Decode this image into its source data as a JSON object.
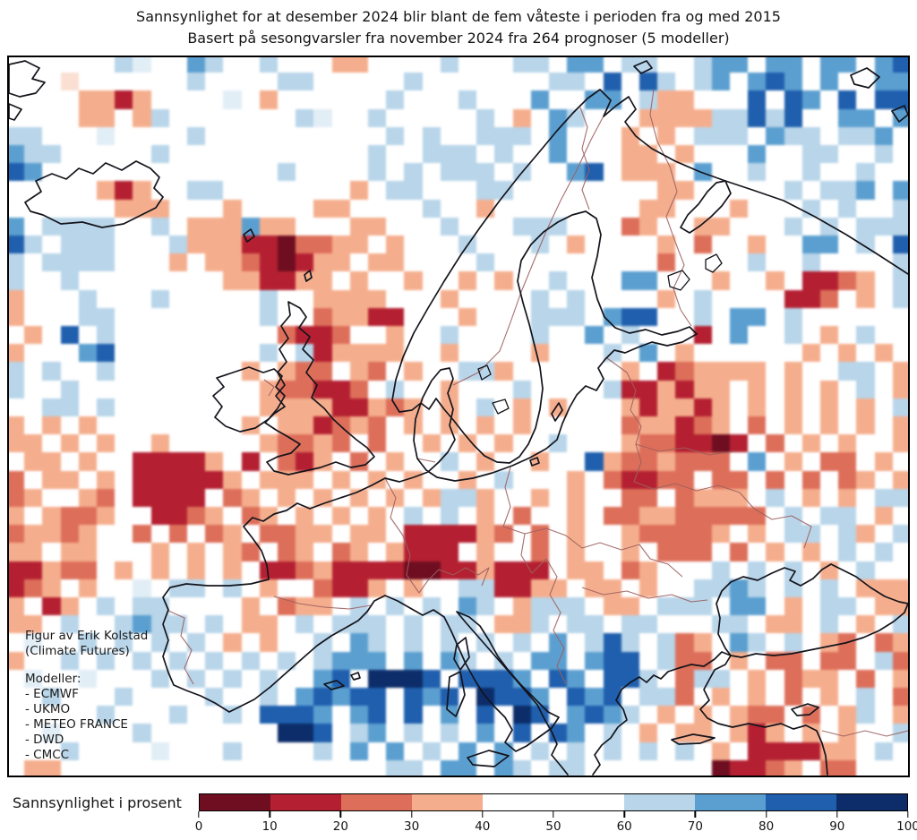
{
  "title": {
    "line1": "Sannsynlighet for at desember 2024 blir blant de fem våteste i perioden fra og med 2015",
    "line2": "Basert på sesongvarsler fra november 2024 fra 264 prognoser (5 modeller)"
  },
  "annotation": {
    "credit_line1": "Figur av Erik Kolstad",
    "credit_line2": "(Climate Futures)",
    "models_label": "Modeller:",
    "models": [
      "- ECMWF",
      "- UKMO",
      "- METEO FRANCE",
      "- DWD",
      "- CMCC"
    ]
  },
  "colorbar": {
    "label": "Sannsynlighet i prosent",
    "ticks": [
      "0",
      "10",
      "20",
      "30",
      "40",
      "50",
      "60",
      "70",
      "80",
      "90",
      "100"
    ],
    "segment_colors": [
      "#6f0d21",
      "#b42031",
      "#dd6f5a",
      "#f5ae8d",
      "#ffffff",
      "#ffffff",
      "#b8d5e9",
      "#5b9fd0",
      "#1f5fad",
      "#0c2d69"
    ]
  },
  "chart_data": {
    "type": "heatmap",
    "title": "Sannsynlighet for at desember 2024 blir blant de fem våteste i perioden fra og med 2015",
    "subtitle": "Basert på sesongvarsler fra november 2024 fra 264 prognoser (5 modeller)",
    "region": "Europe / North Atlantic",
    "units": "percent probability",
    "colorbar_range": [
      0,
      100
    ],
    "colorbar_tick_step": 10,
    "legend_position": "bottom",
    "grid_cols": 50,
    "grid_rows": 40,
    "bins": {
      "0": "0-10%",
      "1": "10-20%",
      "2": "20-30%",
      "3": "30-40%",
      "p": "~40-50% (faint pink)",
      ".": "40-60% (white)",
      "b": "~50-60% (faint blue)",
      "6": "60-70%",
      "7": "70-80%",
      "8": "80-90%",
      "9": "90-100%"
    },
    "palette": {
      "0": "#6f0d21",
      "1": "#b42031",
      "2": "#dd6f5a",
      "3": "#f5ae8d",
      "p": "#fadfd2",
      ".": "#ffffff",
      "b": "#e2eef6",
      "6": "#b8d5e9",
      "7": "#5b9fd0",
      "8": "#1f5fad",
      "9": "#0c2d69"
    },
    "rows": [
      "......6b..76..6...33....6...66.77.66..677.77.77.78",
      "...p......6....66.....6.......66.8.86.67.787.7..77",
      "....3313....b.3......6...6...7..77.633...8.87.8.88",
      "....33.36.......6b..6.....6.3.76...333366868..77.7",
      "66...b....6..........6.6..666.7...3.3.666.766.667",
      "766.....6...........6..666.6..7...33.3...7..66..6.",
      "87.............6....6.6.666.6..78.333.7..6..6..6",
      ".....313..66.......3.66...66........33.....6.667.78",
      "......333...3....33....6..3........33...3...6.6..66",
      "7.6666..6.333733...33...6...666...23..33...6.6.666",
      "86.666...63331102233.3...6...6.3....3.2..3..77.6.8",
      "6.6666...3.33210133.33....6.........2....6..6....6",
      "6..6........331133.3..3..3.3..6...77...3..3.1123.6",
      "3...6...6.....6..3333...3....6.6....3.6....112.3.6",
      "3...66........6..23311...3...666.788..6.77.6......",
      ".3.8.6.........2112..3..6....6..7.6...1.7..6.3.6",
      "3...78........6.613333..3....3...6.7.3......3.3.3.",
      "6.6..6.......3.322.32.3..663......3.123333.3..66.3",
      "6..6..........322112.6..3...6....6113133.3.3.3.6.3",
      "..66.6........3333113"
    ],
    "rows_note": "placeholder replaced at runtime; full grid in rows_full",
    "rows_full": [
      "......6b..76..6...33....6...66.77.66..677.77.77.78",
      "...p......6....66.....6.......66.8.86.67.787.7..77",
      "....3313....b.3......6...6...7..77.633...8.87.8.88",
      "....33.36.......6b..6.....6.3.76...333366868..77.7",
      "66...b....6..........6.6..666.7...3.3.666.766.667",
      "766.....6...........6..666.6..7...33.3...7..66..6.",
      "87.............6....6.6.666.6..78.333.7..6..6..6",
      ".....313..66.......3.66...66........33.....6.667.78",
      "......333...3....33....6..3........33...3...6.6..66",
      "7.6666..6.333733...33...6...666...23..33...6.6.666",
      "86.666...63331102233.3...6...6.3....3.2..3..77.6.8",
      "6.6666...3.33210133.33....6.........2....6..6....6",
      "6..6........331133.3..3..3.3..6...77...3..3.1123.6",
      "3...6...6.....6..3333...3....6.6....3.6....112.3.6",
      "3...66........6..23311...3...666.788..6.77.6......",
      ".3.8.6.........2112..3..6....6..7.6...1.7..6.3.6",
      "3...78........6.613333..3....3...6.7.3......3.3.3.",
      "6.6..6.......3.322.32.3..663......3.123333.3..66.3",
      "6..6..........322112.6..3...6....6113133.3.3.3.6.3",
      "..66.6........333311323.3.6.3.3...313313.3.3.3.3.6.",
      "3.3.3........3.331232.3.3.3.3.....233123.2.3.3.3.3",
      "33.3.3..3.....32232.2..3.3.3..6...3221101.2.3.3..3",
      ".33.3..11113.1.213.2.3..6.3..3..83223222.7.3.22.3.",
      "2.33.3.111113.333.3.3.3..3.6...3.21122.22.2.2.23.3",
      "23..32.1111.23.3.3.3.3.3663..3.3..22.2333.6.3.3.66",
      "3.3223..1123.23.3.3.3.6.6.3.2..3.223322222.6.66.3.",
      "23323..2.2.23.2233.33.111132.2.3..322223.3.66.63.6",
      "33.33...3.3.32.23.23.3111.3..2.3..3.222.2.3.3.6.6.",
      "11322.3.3.3.3.1123111100113111 33.23...6.6.6.3.6..3",
      "123.3..b.66.6.3..2113.3..661133.33.3..6676.6.6.333",
      "3.13.6.66....3.233.6.6.6.76.3666.33.666.77.3.66.33",
      "33.6..6766.6.33.6.666.6.66.336.66.66...66.33.6.3.6",
      ".b..6.6.6.6.3.3..6.76.6.6.6.6.7.686.623.76.6.32.23",
      "3..6.6.6.6.6.6.6.6777.7.76.6.77.788.622.3.22.22.62",
      ".b..b...6.6.6.6..78.9998.8887.87.886.266.3.233.2.3",
      "..6...6....6..6.78788.878.9887.878.662.3.3.2.3.6.2",
      ".....6...6..6.8887.78.8.7.8.98.7876.3.3.322.2.36.3",
      "..b....6.......998.67.6.6.7.8.87.6.3.33.313.3.3..6",
      "...6....b...6....6.7.7.6.7.7.6.6.6.6.6.3.111133.6.",
      ".33..................66.77.76.66.......01123.22.."
    ]
  }
}
